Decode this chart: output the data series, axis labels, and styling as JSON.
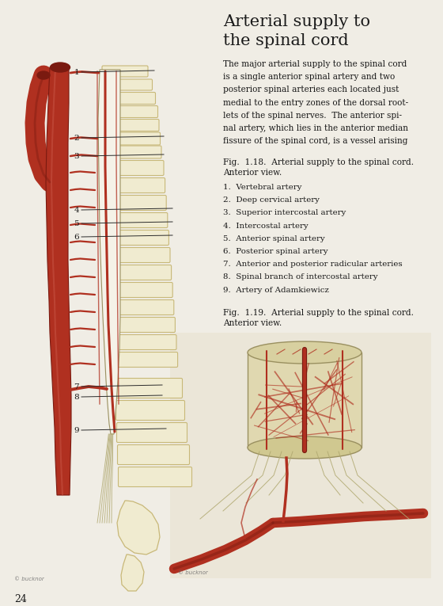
{
  "bg_color": "#e8e4dc",
  "page_bg": "#f0ede5",
  "title": "Arterial supply to\nthe spinal cord",
  "title_fontsize": 15,
  "body_lines": [
    "The major arterial supply to the spinal cord",
    "is a single anterior spinal artery and two",
    "posterior spinal arteries each located just",
    "medial to the entry zones of the dorsal root-",
    "lets of the spinal nerves.  The anterior spi-",
    "nal artery, which lies in the anterior median",
    "fissure of the spinal cord, is a vessel arising"
  ],
  "fig118_caption": "Fig.  1.18.  Arterial supply to the spinal cord.\nAnterior view.",
  "fig119_caption": "Fig.  1.19.  Arterial supply to the spinal cord.\nAnterior view.",
  "legend_items": [
    "1.  Vertebral artery",
    "2.  Deep cervical artery",
    "3.  Superior intercostal artery",
    "4.  Intercostal artery",
    "5.  Anterior spinal artery",
    "6.  Posterior spinal artery",
    "7.  Anterior and posterior radicular arteries",
    "8.  Spinal branch of intercostal artery",
    "9.  Artery of Adamkiewicz"
  ],
  "page_number": "24",
  "artery_color": "#b03020",
  "artery_dark": "#7a1a10",
  "artery_light": "#d06050",
  "bone_color": "#f0ebd0",
  "bone_outline": "#c8b878",
  "cord_color": "#f5f2e8",
  "line_color": "#2c2c2c",
  "text_color": "#1a1a1a"
}
